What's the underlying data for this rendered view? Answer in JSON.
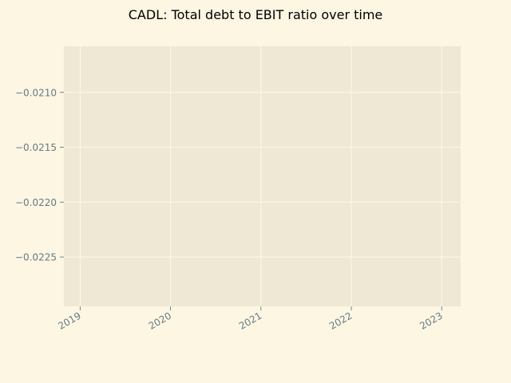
{
  "chart_data": {
    "type": "line",
    "title": "CADL: Total debt to EBIT ratio over time",
    "xlabel": "",
    "ylabel": "",
    "x_ticks": [
      "2019",
      "2020",
      "2021",
      "2022",
      "2023"
    ],
    "y_ticks": [
      "−0.0210",
      "−0.0215",
      "−0.0220",
      "−0.0225"
    ],
    "y_tick_values": [
      -0.021,
      -0.0215,
      -0.022,
      -0.0225
    ],
    "ylim": [
      -0.02295,
      -0.02058
    ],
    "xlim": [
      2018.82,
      2023.21
    ],
    "grid": true,
    "series": [],
    "colors": {
      "figure_bg": "#fdf6e3",
      "axes_bg": "#eee8d5",
      "grid": "#fdf6e3",
      "tick_label": "#657b83",
      "title": "#000000"
    }
  }
}
